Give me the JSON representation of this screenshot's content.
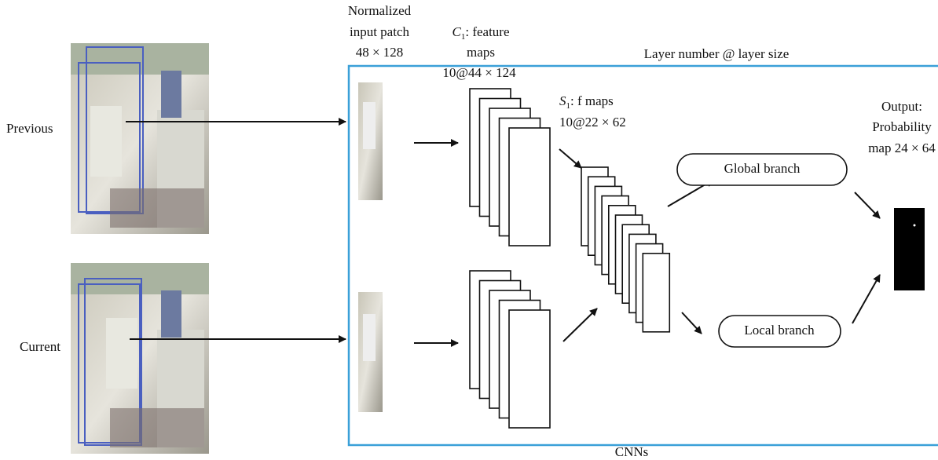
{
  "inputs": [
    {
      "label": "Previous"
    },
    {
      "label": "Current"
    }
  ],
  "patch_label": [
    "Normalized",
    "input patch",
    "48 × 128"
  ],
  "c1_label": {
    "symbol": "C",
    "subscript": "1",
    "text": ": feature",
    "lines": [
      "maps",
      "10@44 × 124"
    ]
  },
  "s1_label": {
    "symbol": "S",
    "subscript": "1",
    "text": ": f maps",
    "lines": [
      "10@22 × 62"
    ]
  },
  "frame_caption": "Layer number @ layer size",
  "branches": [
    {
      "label": "Global branch"
    },
    {
      "label": "Local branch"
    }
  ],
  "output_label": [
    "Output:",
    "Probability",
    "map 24 × 64"
  ],
  "frame_label": "CNNs"
}
